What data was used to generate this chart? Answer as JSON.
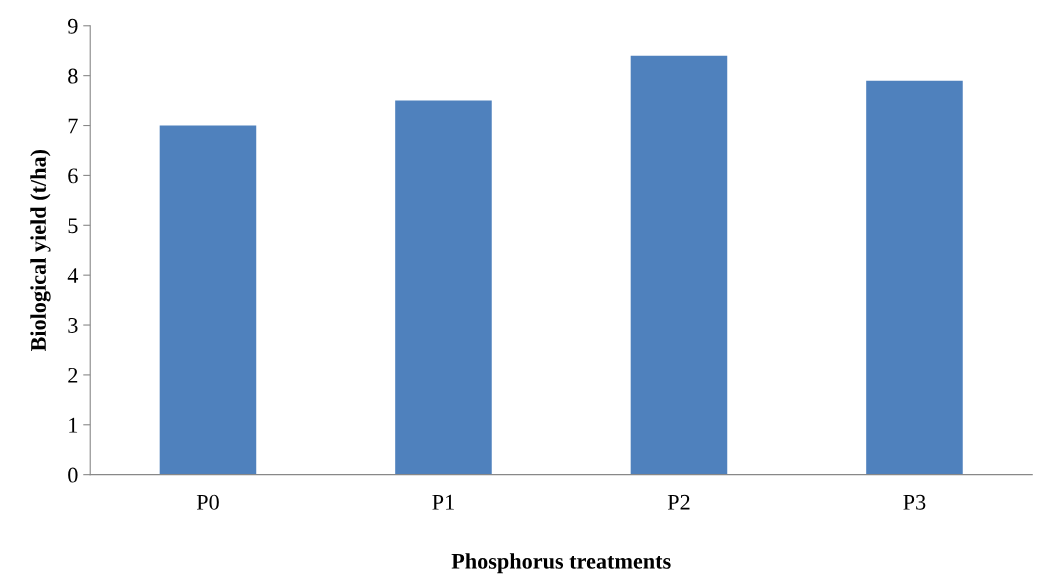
{
  "chart_data": {
    "type": "bar",
    "xlabel": "Phosphorus treatments",
    "ylabel": "Biological yield (t/ha)",
    "categories": [
      "P0",
      "P1",
      "P2",
      "P3"
    ],
    "series": [
      {
        "color": "#4f81bd",
        "values": [
          7.0,
          7.5,
          8.4,
          7.9
        ]
      }
    ],
    "ylim": [
      0,
      9
    ],
    "yticks": [
      0,
      1,
      2,
      3,
      4,
      5,
      6,
      7,
      8,
      9
    ],
    "grid": false,
    "legend": false
  }
}
